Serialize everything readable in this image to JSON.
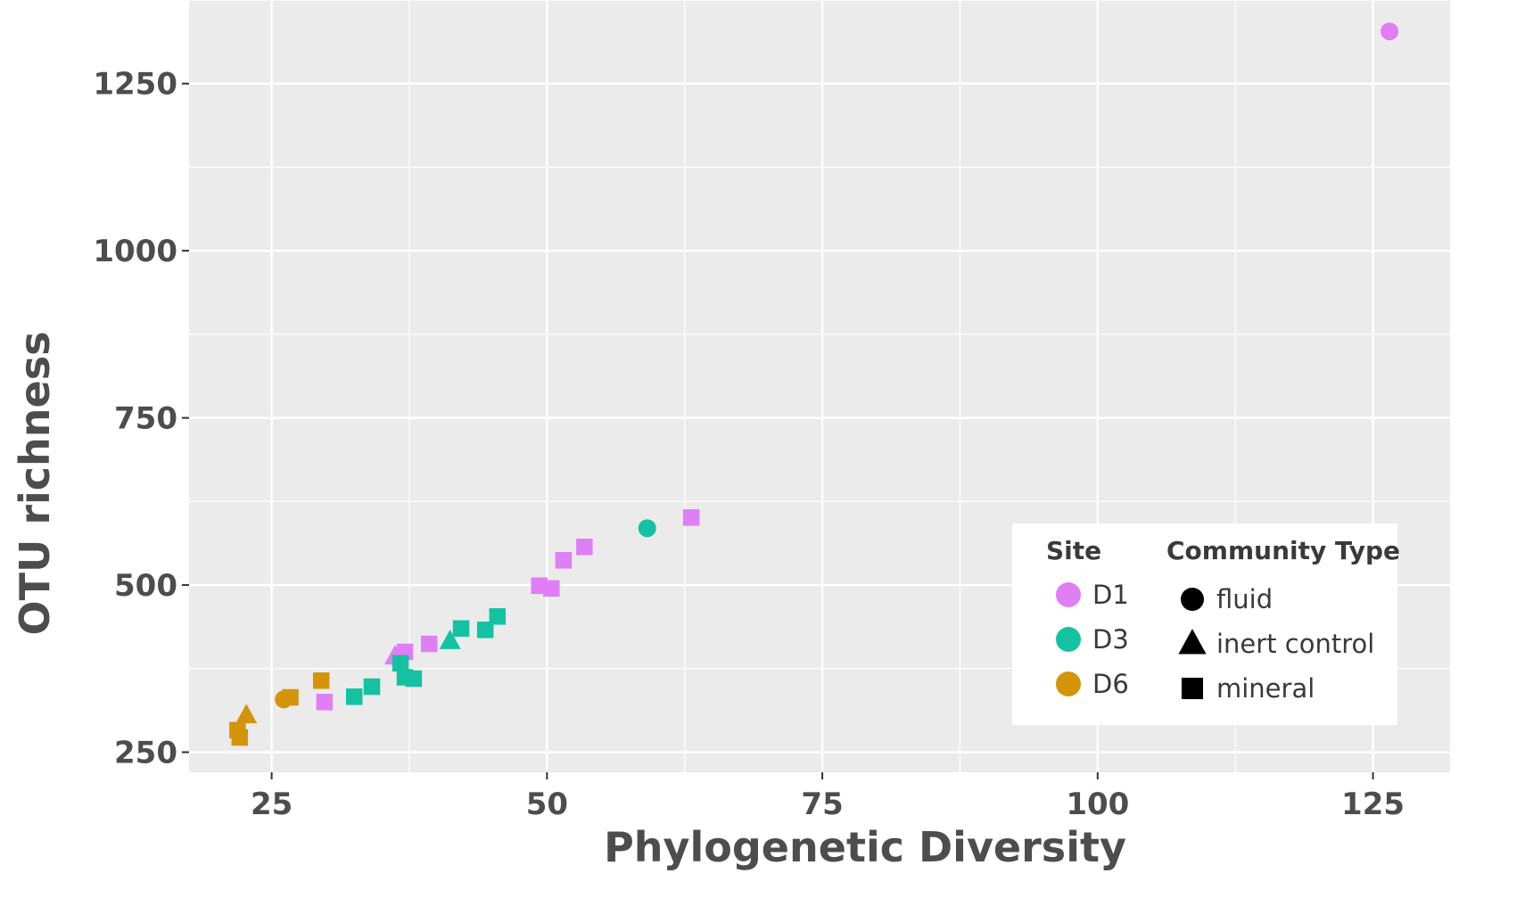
{
  "chart_data": {
    "type": "scatter",
    "title": "",
    "xlabel": "Phylogenetic Diversity",
    "ylabel": "OTU richness",
    "xlim": [
      17.5,
      132
    ],
    "ylim": [
      220,
      1375
    ],
    "x_ticks": [
      25,
      50,
      75,
      100,
      125
    ],
    "y_ticks": [
      250,
      500,
      750,
      1000,
      1250
    ],
    "grid": true,
    "legend_position": "bottom-right",
    "legend": {
      "site_title": "Site",
      "type_title": "Community Type",
      "sites": [
        {
          "name": "D1",
          "color": "#e07ef5"
        },
        {
          "name": "D3",
          "color": "#14c2a2"
        },
        {
          "name": "D6",
          "color": "#d4940a"
        }
      ],
      "types": [
        {
          "name": "fluid",
          "shape": "circle"
        },
        {
          "name": "inert control",
          "shape": "triangle"
        },
        {
          "name": "mineral",
          "shape": "square"
        }
      ]
    },
    "points": [
      {
        "x": 126.5,
        "y": 1328,
        "site": "D1",
        "type": "fluid"
      },
      {
        "x": 63.1,
        "y": 601,
        "site": "D1",
        "type": "mineral"
      },
      {
        "x": 53.4,
        "y": 557,
        "site": "D1",
        "type": "mineral"
      },
      {
        "x": 51.5,
        "y": 537,
        "site": "D1",
        "type": "mineral"
      },
      {
        "x": 49.3,
        "y": 499,
        "site": "D1",
        "type": "mineral"
      },
      {
        "x": 50.4,
        "y": 495,
        "site": "D1",
        "type": "mineral"
      },
      {
        "x": 39.3,
        "y": 412,
        "site": "D1",
        "type": "mineral"
      },
      {
        "x": 36.2,
        "y": 393,
        "site": "D1",
        "type": "inert control"
      },
      {
        "x": 37.1,
        "y": 400,
        "site": "D1",
        "type": "mineral"
      },
      {
        "x": 29.8,
        "y": 325,
        "site": "D1",
        "type": "mineral"
      },
      {
        "x": 59.1,
        "y": 585,
        "site": "D3",
        "type": "fluid"
      },
      {
        "x": 45.5,
        "y": 453,
        "site": "D3",
        "type": "mineral"
      },
      {
        "x": 44.4,
        "y": 433,
        "site": "D3",
        "type": "mineral"
      },
      {
        "x": 42.2,
        "y": 435,
        "site": "D3",
        "type": "mineral"
      },
      {
        "x": 41.2,
        "y": 416,
        "site": "D3",
        "type": "inert control"
      },
      {
        "x": 36.7,
        "y": 383,
        "site": "D3",
        "type": "mineral"
      },
      {
        "x": 37.1,
        "y": 362,
        "site": "D3",
        "type": "mineral"
      },
      {
        "x": 37.9,
        "y": 360,
        "site": "D3",
        "type": "mineral"
      },
      {
        "x": 34.1,
        "y": 348,
        "site": "D3",
        "type": "mineral"
      },
      {
        "x": 32.5,
        "y": 333,
        "site": "D3",
        "type": "mineral"
      },
      {
        "x": 29.5,
        "y": 357,
        "site": "D6",
        "type": "mineral"
      },
      {
        "x": 26.1,
        "y": 329,
        "site": "D6",
        "type": "fluid"
      },
      {
        "x": 26.7,
        "y": 332,
        "site": "D6",
        "type": "mineral"
      },
      {
        "x": 22.7,
        "y": 305,
        "site": "D6",
        "type": "inert control"
      },
      {
        "x": 21.9,
        "y": 283,
        "site": "D6",
        "type": "mineral"
      },
      {
        "x": 22.1,
        "y": 272,
        "site": "D6",
        "type": "mineral"
      }
    ]
  }
}
